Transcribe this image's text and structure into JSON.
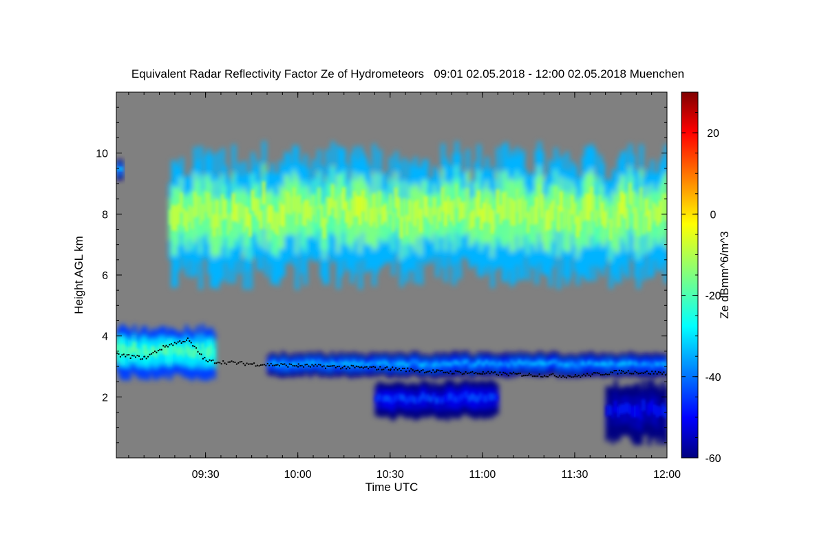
{
  "chart_data": {
    "type": "heatmap",
    "title": "Equivalent Radar Reflectivity Factor Ze of Hydrometeors   09:01 02.05.2018 - 12:00 02.05.2018 Muenchen",
    "xlabel": "Time UTC",
    "ylabel": "Height AGL km",
    "x_ticks": [
      "09:30",
      "10:00",
      "10:30",
      "11:00",
      "11:30",
      "12:00"
    ],
    "x_range": [
      "09:01",
      "12:00"
    ],
    "y_ticks": [
      2,
      4,
      6,
      8,
      10
    ],
    "ylim": [
      0,
      12
    ],
    "colorbar": {
      "label": "Ze dBmm^6/m^3",
      "range": [
        -60,
        30
      ],
      "ticks": [
        -60,
        -40,
        -20,
        0,
        20
      ],
      "colormap": "jet"
    },
    "background_color": "#808080",
    "layers": [
      {
        "name": "upper ice cloud",
        "start": "09:18",
        "end": "12:00",
        "base_km": 5.5,
        "top_km": 10.4,
        "peak_dbz": -5
      },
      {
        "name": "early cloud fragment",
        "start": "09:01",
        "end": "09:03",
        "base_km": 9.0,
        "top_km": 9.8,
        "peak_dbz": -30
      },
      {
        "name": "lower cloud layer (morning)",
        "start": "09:01",
        "end": "09:33",
        "base_km": 2.5,
        "top_km": 4.4,
        "peak_dbz": -15
      },
      {
        "name": "lower cloud layer",
        "start": "09:50",
        "end": "12:00",
        "base_km": 2.6,
        "top_km": 3.5,
        "peak_dbz": -30
      },
      {
        "name": "virga",
        "start": "10:25",
        "end": "11:05",
        "base_km": 1.2,
        "top_km": 2.6,
        "peak_dbz": -40
      },
      {
        "name": "precipitation streaks",
        "start": "11:40",
        "end": "12:00",
        "base_km": 0.4,
        "top_km": 2.6,
        "peak_dbz": -45
      }
    ],
    "cloud_base_points": [
      {
        "time": "09:01",
        "height_km": 3.4
      },
      {
        "time": "09:10",
        "height_km": 3.3
      },
      {
        "time": "09:17",
        "height_km": 3.7
      },
      {
        "time": "09:24",
        "height_km": 3.9
      },
      {
        "time": "09:30",
        "height_km": 3.2
      },
      {
        "time": "09:45",
        "height_km": 3.1
      },
      {
        "time": "10:00",
        "height_km": 3.05
      },
      {
        "time": "10:15",
        "height_km": 3.0
      },
      {
        "time": "10:30",
        "height_km": 2.95
      },
      {
        "time": "10:45",
        "height_km": 2.85
      },
      {
        "time": "11:00",
        "height_km": 2.8
      },
      {
        "time": "11:15",
        "height_km": 2.75
      },
      {
        "time": "11:30",
        "height_km": 2.7
      },
      {
        "time": "11:45",
        "height_km": 2.85
      },
      {
        "time": "12:00",
        "height_km": 2.8
      }
    ]
  }
}
